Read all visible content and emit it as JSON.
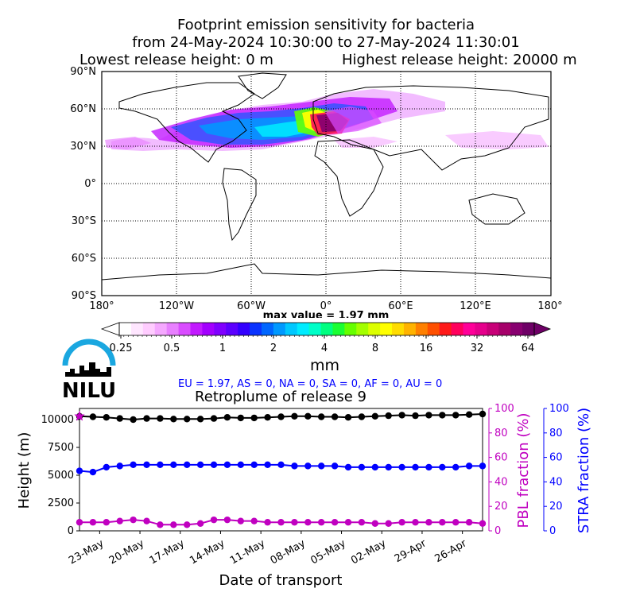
{
  "map": {
    "title_lines": [
      "Footprint emission sensitivity for bacteria",
      "from 24-May-2024 10:30:00 to 27-May-2024 11:30:01"
    ],
    "release_low": "Lowest release height: 0 m",
    "release_high": "Highest release height: 20000 m",
    "lat_labels": [
      "90°N",
      "60°N",
      "30°N",
      "0°",
      "30°S",
      "60°S",
      "90°S"
    ],
    "lon_labels": [
      "180°",
      "120°W",
      "60°W",
      "0°",
      "60°E",
      "120°E",
      "180°"
    ],
    "max_value": "max value = 1.97 mm"
  },
  "colorbar": {
    "ticks": [
      "0.25",
      "0.5",
      "1",
      "2",
      "4",
      "8",
      "16",
      "32",
      "64"
    ],
    "unit": "mm",
    "colors": [
      "#ffffff",
      "#ffe6ff",
      "#ffccff",
      "#f5a8ff",
      "#e880ff",
      "#d94cff",
      "#c21aff",
      "#a300ff",
      "#8000ff",
      "#5c00ff",
      "#3300ff",
      "#0a33ff",
      "#0066ff",
      "#0099ff",
      "#00c8ff",
      "#00ecff",
      "#00ffc8",
      "#00ff80",
      "#1aff33",
      "#66ff00",
      "#a3ff00",
      "#dcff00",
      "#ffff00",
      "#ffdc00",
      "#ffb300",
      "#ff8000",
      "#ff5000",
      "#ff1a1a",
      "#ff005c",
      "#ff0099",
      "#e6008c",
      "#c80078",
      "#a6006a",
      "#880070",
      "#6e0066"
    ]
  },
  "logo": {
    "text": "NILU"
  },
  "regions": "EU = 1.97,  AS = 0,  NA = 0,  SA = 0,  AF = 0,  AU = 0",
  "chart_data": {
    "type": "line",
    "title": "Retroplume of release 9",
    "xlabel": "Date of transport",
    "ylabel": "Height (m)",
    "ylabel_right1": "PBL fraction (%)",
    "ylabel_right2": "STRA fraction (%)",
    "ylim": [
      0,
      11000
    ],
    "y_ticks": [
      "0",
      "2500",
      "5000",
      "7500",
      "10000"
    ],
    "right_ticks": [
      "0",
      "20",
      "40",
      "60",
      "80",
      "100"
    ],
    "x_tick_labels": [
      "23-May",
      "20-May",
      "17-May",
      "14-May",
      "11-May",
      "08-May",
      "05-May",
      "02-May",
      "29-Apr",
      "26-Apr"
    ],
    "series": [
      {
        "color": "#000000",
        "axis": "height",
        "values": [
          10300,
          10250,
          10200,
          10100,
          10000,
          10100,
          10100,
          10050,
          10050,
          10050,
          10100,
          10200,
          10150,
          10150,
          10200,
          10250,
          10300,
          10300,
          10250,
          10250,
          10200,
          10250,
          10300,
          10350,
          10400,
          10350,
          10400,
          10400,
          10400,
          10450,
          10500
        ]
      },
      {
        "color": "#0000ff",
        "axis": "stra",
        "values": [
          49,
          48,
          52,
          53,
          54,
          54,
          54,
          54,
          54,
          54,
          54,
          54,
          54,
          54,
          54,
          54,
          53,
          53,
          53,
          53,
          52,
          52,
          52,
          52,
          52,
          52,
          52,
          52,
          52,
          53,
          53
        ]
      },
      {
        "color": "#c000c0",
        "axis": "pbl",
        "values": [
          7,
          7,
          7,
          8,
          9,
          8,
          5,
          5,
          5,
          6,
          9,
          9,
          8,
          8,
          7,
          7,
          7,
          7,
          7,
          7,
          7,
          7,
          6,
          6,
          7,
          7,
          7,
          7,
          7,
          7,
          6
        ]
      }
    ],
    "release_marker": {
      "value": 10300,
      "color": "#c000c0"
    }
  }
}
